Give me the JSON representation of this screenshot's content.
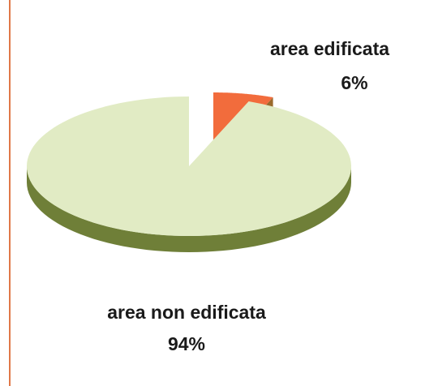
{
  "chart_data": {
    "type": "pie",
    "style": "3d-exploded",
    "categories": [
      "area edificata",
      "area non edificata"
    ],
    "values": [
      6,
      94
    ],
    "percent_labels": [
      "6%",
      "94%"
    ],
    "colors": {
      "area edificata": "#f26c3c",
      "area non edificata": "#e1ebc4",
      "slice_side_dark": "#6f7f38",
      "frame_line": "#e07848"
    },
    "legend": "none"
  }
}
